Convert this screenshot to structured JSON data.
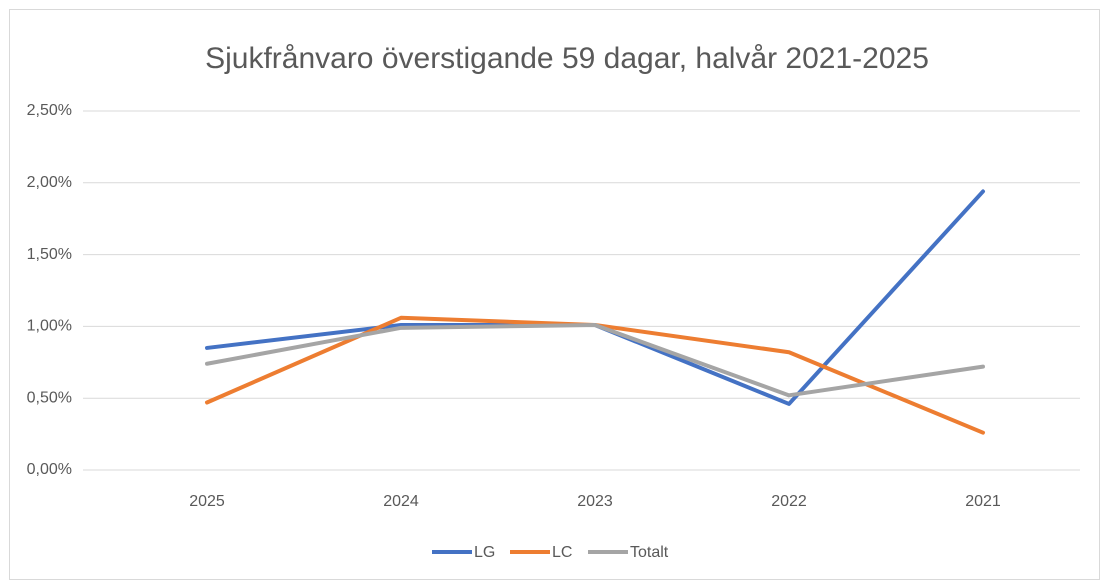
{
  "chart_data": {
    "type": "line",
    "title": "Sjukfrånvaro överstigande 59 dagar, halvår 2021-2025",
    "categories": [
      "2025",
      "2024",
      "2023",
      "2022",
      "2021"
    ],
    "series": [
      {
        "name": "LG",
        "color": "#4472c4",
        "values": [
          0.85,
          1.01,
          1.01,
          0.46,
          1.94
        ]
      },
      {
        "name": "LC",
        "color": "#ed7d31",
        "values": [
          0.47,
          1.06,
          1.01,
          0.82,
          0.26
        ]
      },
      {
        "name": "Totalt",
        "color": "#a5a5a5",
        "values": [
          0.74,
          0.99,
          1.01,
          0.52,
          0.72
        ]
      }
    ],
    "ylim": [
      0,
      2.5
    ],
    "yticks": [
      {
        "value": 0,
        "label": "0,00%"
      },
      {
        "value": 0.5,
        "label": "0,50%"
      },
      {
        "value": 1,
        "label": "1,00%"
      },
      {
        "value": 1.5,
        "label": "1,50%"
      },
      {
        "value": 2,
        "label": "2,00%"
      },
      {
        "value": 2.5,
        "label": "2,50%"
      }
    ],
    "grid": true,
    "legend": "bottom"
  }
}
